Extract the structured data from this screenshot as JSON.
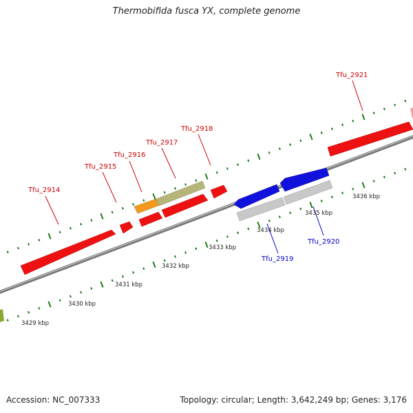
{
  "title": "Thermobifida fusca YX, complete genome",
  "footer": {
    "accession": "Accession: NC_007333",
    "summary": "Topology: circular; Length: 3,642,249 bp; Genes: 3,176"
  },
  "colors": {
    "backbone": "#888888",
    "tick": "#1a7a1a",
    "forward_label": "#cc0000",
    "reverse_label": "#0000cc",
    "red_gene": "#ee1111",
    "blue_gene": "#1111dd",
    "grey_gene": "#c8c8c8",
    "olive_gene": "#b5b57a",
    "orange_gene": "#f39a1e",
    "pink_gene": "#f0a0a0",
    "green_gene": "#88aa33"
  },
  "scale": {
    "kbp_labels": [
      "3429 kbp",
      "3430 kbp",
      "3431 kbp",
      "3432 kbp",
      "3433 kbp",
      "3434 kbp",
      "3435 kbp",
      "3436 kbp"
    ]
  },
  "genes": {
    "forward": [
      {
        "label": "Tfu_2914",
        "color": "red"
      },
      {
        "label": "Tfu_2915",
        "color": "red"
      },
      {
        "label": "Tfu_2916",
        "color": "orange"
      },
      {
        "label": "Tfu_2917",
        "color": "olive"
      },
      {
        "label": "Tfu_2918",
        "color": "red"
      },
      {
        "label": "Tfu_2921",
        "color": "red"
      }
    ],
    "reverse": [
      {
        "label": "Tfu_2919",
        "color": "blue"
      },
      {
        "label": "Tfu_2920",
        "color": "blue"
      }
    ]
  }
}
